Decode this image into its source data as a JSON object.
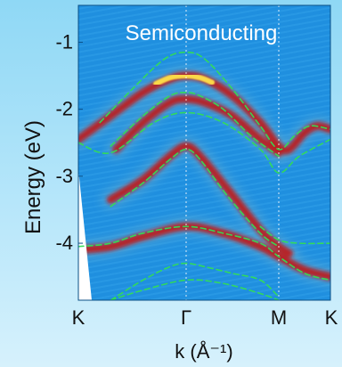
{
  "chart_data": {
    "type": "heatmap",
    "title": "Semiconducting",
    "xlabel": "k (Å⁻¹)",
    "ylabel": "Energy (eV)",
    "x_ticks": [
      "K",
      "Γ",
      "M",
      "K"
    ],
    "y_ticks": [
      -1,
      -2,
      -3,
      -4
    ],
    "xlim": [
      0,
      3
    ],
    "ylim": [
      -4.85,
      -0.45
    ],
    "grid": "dotted vertical lines at Γ and M",
    "colors": {
      "background": "#1f8fdf",
      "intensity_high": "#ffe34a",
      "intensity_mid": "#c01818",
      "overlay": "#33dd55"
    },
    "intensity_bands": [
      {
        "name": "upper-band",
        "x": [
          0,
          0.3,
          0.6,
          0.85,
          1.0,
          1.2,
          1.5,
          1.8,
          2.0,
          2.2,
          2.5,
          2.75,
          3.0
        ],
        "y": [
          -2.45,
          -2.1,
          -1.75,
          -1.55,
          -1.5,
          -1.55,
          -1.8,
          -2.2,
          -2.55,
          -2.6,
          -2.35,
          -2.25,
          -2.3
        ]
      },
      {
        "name": "second-band",
        "x": [
          0.35,
          0.6,
          0.85,
          1.0,
          1.2,
          1.5,
          1.8,
          2.0
        ],
        "y": [
          -2.6,
          -2.2,
          -1.9,
          -1.85,
          -1.9,
          -2.1,
          -2.45,
          -2.65
        ]
      },
      {
        "name": "middle-band",
        "x": [
          0.3,
          0.6,
          0.85,
          1.0,
          1.15,
          1.45,
          1.8,
          2.0,
          2.2
        ],
        "y": [
          -3.35,
          -3.05,
          -2.7,
          -2.55,
          -2.7,
          -3.2,
          -3.8,
          -4.05,
          -4.15
        ]
      },
      {
        "name": "lower-band",
        "x": [
          0,
          0.3,
          0.6,
          1.0,
          1.4,
          1.8,
          2.0,
          2.5,
          3.0
        ],
        "y": [
          -4.1,
          -4.05,
          -3.9,
          -3.75,
          -3.85,
          -4.05,
          -4.2,
          -4.4,
          -4.5
        ]
      }
    ],
    "overlay_bands": [
      {
        "name": "calc-band-1",
        "x": [
          0.2,
          0.5,
          0.8,
          1.0,
          1.2,
          1.5,
          1.8,
          2.0,
          2.3,
          2.6,
          3.0
        ],
        "y": [
          -2.2,
          -1.7,
          -1.25,
          -1.15,
          -1.25,
          -1.7,
          -2.25,
          -2.6,
          -2.4,
          -2.25,
          -2.3
        ]
      },
      {
        "name": "calc-band-2",
        "x": [
          0.3,
          0.6,
          0.85,
          1.0,
          1.15,
          1.4,
          1.7,
          2.0
        ],
        "y": [
          -2.55,
          -2.1,
          -1.8,
          -1.75,
          -1.8,
          -2.0,
          -2.4,
          -2.7
        ]
      },
      {
        "name": "calc-band-3",
        "x": [
          0,
          0.3,
          0.7,
          1.0,
          1.4,
          1.8,
          2.0,
          2.4,
          3.0
        ],
        "y": [
          -2.5,
          -2.65,
          -2.2,
          -2.05,
          -2.2,
          -2.6,
          -2.95,
          -2.7,
          -2.45
        ]
      },
      {
        "name": "calc-band-4",
        "x": [
          0.3,
          0.6,
          0.85,
          1.0,
          1.15,
          1.45,
          1.8,
          2.0
        ],
        "y": [
          -3.45,
          -3.1,
          -2.75,
          -2.6,
          -2.75,
          -3.3,
          -3.85,
          -4.05
        ]
      },
      {
        "name": "calc-band-5",
        "x": [
          0,
          0.3,
          0.6,
          1.0,
          1.4,
          1.8,
          2.0,
          2.5,
          3.0
        ],
        "y": [
          -4.05,
          -4.0,
          -3.85,
          -3.75,
          -3.85,
          -4.0,
          -4.2,
          -4.45,
          -4.55
        ]
      },
      {
        "name": "calc-band-6",
        "x": [
          1.8,
          2.0,
          2.4,
          3.0
        ],
        "y": [
          -3.75,
          -3.95,
          -4.0,
          -4.0
        ]
      },
      {
        "name": "calc-band-7",
        "x": [
          0.3,
          0.6,
          0.85,
          1.0,
          1.2,
          1.5,
          1.8,
          2.0
        ],
        "y": [
          -4.85,
          -4.55,
          -4.35,
          -4.3,
          -4.35,
          -4.45,
          -4.55,
          -4.8
        ]
      },
      {
        "name": "calc-band-8",
        "x": [
          0.3,
          0.6,
          1.0,
          1.4,
          1.8,
          2.0
        ],
        "y": [
          -4.85,
          -4.7,
          -4.55,
          -4.6,
          -4.75,
          -4.85
        ]
      }
    ]
  }
}
